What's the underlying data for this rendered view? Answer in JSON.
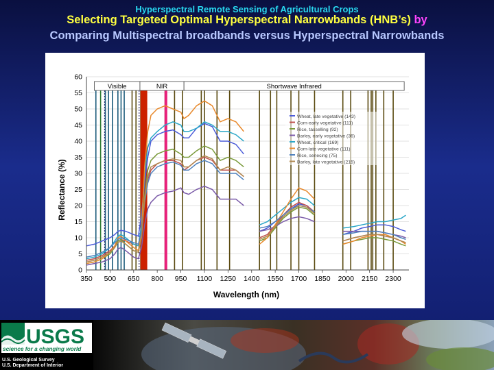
{
  "slide": {
    "kicker": "Hyperspectral Remote Sensing of Agricultural Crops",
    "title_part1": "Selecting Targeted Optimal Hyperspectral Narrowbands (HNB’s)",
    "title_highlight": "by",
    "title_line2": "Comparing Multispectral broadbands versus Hyperspectral Narrowbands"
  },
  "footer": {
    "logo_text": "USGS",
    "tagline": "science for a changing world",
    "org_line1": "U.S. Geological Survey",
    "org_line2": "U.S. Department of Interior"
  },
  "colors": {
    "kicker": "#28d8f0",
    "title": "#ffff40",
    "highlight": "#ff44ff",
    "subtitle": "#b8c8ff",
    "band_line": "#5a4a10",
    "red_band": "#cc2200",
    "magenta_band": "#e8207a"
  },
  "chart_data": {
    "type": "line",
    "xlabel": "Wavelength (nm)",
    "ylabel": "Reflectance (%)",
    "xlim": [
      350,
      2400
    ],
    "ylim": [
      0,
      60
    ],
    "xticks": [
      350,
      500,
      650,
      800,
      950,
      1100,
      1250,
      1400,
      1550,
      1700,
      1850,
      2000,
      2150,
      2300
    ],
    "yticks": [
      0,
      5,
      10,
      15,
      20,
      25,
      30,
      35,
      40,
      45,
      50,
      55,
      60
    ],
    "regions": [
      {
        "label": "Visible",
        "from": 400,
        "to": 690
      },
      {
        "label": "NIR",
        "from": 690,
        "to": 970
      },
      {
        "label": "Shortwave Infrared",
        "from": 970,
        "to": 2370
      }
    ],
    "legend_position": "right-center",
    "narrowbands_nm": [
      410,
      440,
      470,
      490,
      515,
      550,
      570,
      590,
      640,
      665,
      695,
      700,
      710,
      720,
      730,
      850,
      910,
      960,
      1080,
      1100,
      1180,
      1260,
      1450,
      1520,
      1560,
      1650,
      1700,
      1800,
      1980,
      2030,
      2140,
      2160,
      2170,
      2190,
      2240,
      2300
    ],
    "wide_bands_nm": [
      700,
      705,
      710,
      715,
      720,
      725,
      730
    ],
    "highlight_band_nm": 855,
    "series": [
      {
        "name": "Wheat, late vegetative (143)",
        "color": "#4a5bd8",
        "x": [
          350,
          400,
          450,
          500,
          530,
          550,
          570,
          600,
          650,
          680,
          700,
          720,
          740,
          760,
          800,
          850,
          900,
          950,
          970,
          1000,
          1050,
          1100,
          1150,
          1200,
          1250,
          1300,
          1350,
          1450,
          1500,
          1550,
          1600,
          1650,
          1700,
          1750,
          1800,
          1980,
          2050,
          2100,
          2150,
          2200,
          2250,
          2300,
          2350,
          2380
        ],
        "y": [
          7.5,
          8,
          9,
          10,
          11,
          12,
          12.3,
          12,
          11,
          10.5,
          17,
          27,
          35,
          40,
          42,
          43,
          43.5,
          42,
          41,
          41,
          44,
          45.5,
          44.5,
          40,
          40,
          39,
          36,
          12,
          13,
          15,
          17,
          19,
          20.5,
          20,
          18,
          11,
          12,
          13,
          13.5,
          14,
          14,
          13.5,
          12.5,
          12
        ]
      },
      {
        "name": "Corn-early vegetative (111)",
        "color": "#c0504d",
        "x": [
          350,
          400,
          450,
          500,
          530,
          550,
          570,
          600,
          650,
          680,
          700,
          720,
          740,
          760,
          800,
          850,
          900,
          950,
          970,
          1000,
          1050,
          1100,
          1150,
          1200,
          1250,
          1300,
          1350,
          1450,
          1500,
          1550,
          1600,
          1650,
          1700,
          1750,
          1800,
          1980,
          2050,
          2100,
          2150,
          2200,
          2250,
          2300,
          2350,
          2380
        ],
        "y": [
          3,
          3.5,
          4.5,
          6,
          7.5,
          9,
          9.5,
          9,
          8,
          7.5,
          12,
          21,
          28,
          31,
          33,
          34,
          34,
          33,
          31,
          32,
          34,
          35,
          34,
          31,
          31,
          31,
          29,
          10,
          11,
          14,
          17,
          19.5,
          21,
          20,
          18,
          9,
          10,
          10.5,
          11,
          11,
          10.5,
          10,
          9,
          8.5
        ]
      },
      {
        "name": "Rice, tasselling (92)",
        "color": "#7a9a3a",
        "x": [
          350,
          400,
          450,
          500,
          530,
          550,
          570,
          600,
          650,
          680,
          700,
          720,
          740,
          760,
          800,
          850,
          900,
          950,
          970,
          1000,
          1050,
          1100,
          1150,
          1200,
          1250,
          1300,
          1350,
          1450,
          1500,
          1550,
          1600,
          1650,
          1700,
          1750,
          1800,
          1980,
          2050,
          2100,
          2150,
          2200,
          2250,
          2300,
          2350,
          2380
        ],
        "y": [
          2,
          2.5,
          3.5,
          5,
          7,
          9,
          9.5,
          8,
          6,
          5.5,
          10,
          23,
          31,
          34,
          36,
          37,
          37.5,
          36,
          35,
          35,
          37,
          38.5,
          37.5,
          34,
          35,
          34,
          32,
          9,
          10,
          13,
          16,
          18,
          19.5,
          19,
          17,
          8,
          9,
          9.5,
          10,
          10,
          9.5,
          9,
          8,
          7.5
        ]
      },
      {
        "name": "Barley, early vegetative (36)",
        "color": "#7a5aa8",
        "x": [
          350,
          400,
          450,
          500,
          530,
          550,
          570,
          600,
          650,
          680,
          700,
          720,
          740,
          760,
          800,
          850,
          900,
          950,
          970,
          1000,
          1050,
          1100,
          1150,
          1200,
          1250,
          1300,
          1350,
          1450,
          1500,
          1550,
          1600,
          1650,
          1700,
          1750,
          1800,
          1980,
          2050,
          2100,
          2150,
          2200,
          2250,
          2300,
          2350,
          2380
        ],
        "y": [
          1.5,
          2,
          2.5,
          3.5,
          5,
          6.5,
          7,
          6,
          4,
          3.5,
          7,
          14,
          19,
          21,
          23,
          24,
          24.5,
          25.5,
          24,
          23.5,
          25,
          26,
          25,
          22,
          22,
          22,
          20,
          12,
          12.5,
          13.5,
          15,
          16,
          16.5,
          16,
          15,
          12,
          12,
          12,
          12,
          12,
          11.5,
          11,
          10.5,
          10
        ]
      },
      {
        "name": "Wheat, critical (169)",
        "color": "#2aa7c8",
        "x": [
          350,
          400,
          450,
          500,
          530,
          550,
          570,
          600,
          650,
          680,
          700,
          720,
          740,
          760,
          800,
          850,
          900,
          950,
          970,
          1000,
          1050,
          1100,
          1150,
          1200,
          1250,
          1300,
          1350,
          1450,
          1500,
          1550,
          1600,
          1650,
          1700,
          1750,
          1800,
          1980,
          2050,
          2100,
          2150,
          2200,
          2250,
          2300,
          2350,
          2380
        ],
        "y": [
          3.5,
          4,
          5,
          7,
          9,
          10.5,
          11,
          10,
          8,
          7.5,
          14,
          30,
          38,
          41,
          43,
          45,
          46,
          45,
          43,
          43,
          44,
          46,
          45,
          43,
          43,
          42,
          40,
          14,
          15,
          17,
          19,
          21,
          22.5,
          22,
          20,
          13,
          13.5,
          14,
          14.5,
          15,
          15,
          15.5,
          16,
          17
        ]
      },
      {
        "name": "Corn-late vegetative (111)",
        "color": "#e8892c",
        "x": [
          350,
          400,
          450,
          500,
          530,
          550,
          570,
          600,
          650,
          680,
          700,
          720,
          740,
          760,
          800,
          850,
          900,
          950,
          970,
          1000,
          1050,
          1100,
          1150,
          1200,
          1250,
          1300,
          1350,
          1450,
          1500,
          1550,
          1600,
          1650,
          1700,
          1750,
          1800,
          1980,
          2050,
          2100,
          2150,
          2200,
          2250,
          2300,
          2350,
          2380
        ],
        "y": [
          2,
          2.5,
          3.5,
          5.5,
          7.5,
          10,
          10.5,
          9,
          7,
          6,
          12,
          32,
          43,
          48,
          50,
          51,
          50,
          49,
          47,
          48,
          51,
          52.5,
          51,
          46,
          47,
          46,
          43,
          8,
          10,
          14,
          18,
          22,
          25.5,
          24.5,
          22,
          8,
          9,
          10,
          10.5,
          11,
          11,
          10,
          9,
          8
        ]
      },
      {
        "name": "Rice, senecing (75)",
        "color": "#4f81bd",
        "x": [
          350,
          400,
          450,
          500,
          530,
          550,
          570,
          600,
          650,
          680,
          700,
          720,
          740,
          760,
          800,
          850,
          900,
          950,
          970,
          1000,
          1050,
          1100,
          1150,
          1200,
          1250,
          1300,
          1350,
          1450,
          1500,
          1550,
          1600,
          1650,
          1700,
          1750,
          1800,
          1980,
          2050,
          2100,
          2150,
          2200,
          2250,
          2300,
          2350,
          2380
        ],
        "y": [
          4,
          4.5,
          5.5,
          7,
          8.5,
          9.5,
          10,
          9.5,
          8.5,
          8,
          12,
          21,
          27,
          30,
          32,
          33,
          33.5,
          32.5,
          31,
          31,
          33,
          34,
          33,
          30,
          30,
          30,
          28,
          13,
          13.5,
          15,
          17,
          19,
          20,
          19.5,
          18,
          11,
          11.5,
          12,
          12,
          12,
          11.5,
          11,
          10,
          9.5
        ]
      },
      {
        "name": "Barley, late vegetative (215)",
        "color": "#b08850",
        "x": [
          350,
          400,
          450,
          500,
          530,
          550,
          570,
          600,
          650,
          680,
          700,
          720,
          740,
          760,
          800,
          850,
          900,
          950,
          970,
          1000,
          1050,
          1100,
          1150,
          1200,
          1250,
          1300,
          1350,
          1450,
          1500,
          1550,
          1600,
          1650,
          1700,
          1750,
          1800,
          1980,
          2050,
          2100,
          2150,
          2200,
          2250,
          2300,
          2350,
          2380
        ],
        "y": [
          2.5,
          3,
          4,
          5.5,
          7,
          8.5,
          9,
          8,
          6,
          5.5,
          10,
          22,
          29,
          32,
          33,
          34,
          34.5,
          34,
          32,
          32,
          34,
          35.5,
          34.5,
          31,
          32,
          31,
          29,
          9.5,
          10.5,
          13.5,
          16.5,
          18.5,
          20,
          19.5,
          17.5,
          9,
          10,
          10.5,
          11,
          11,
          10.5,
          10,
          9,
          8.5
        ]
      }
    ]
  }
}
